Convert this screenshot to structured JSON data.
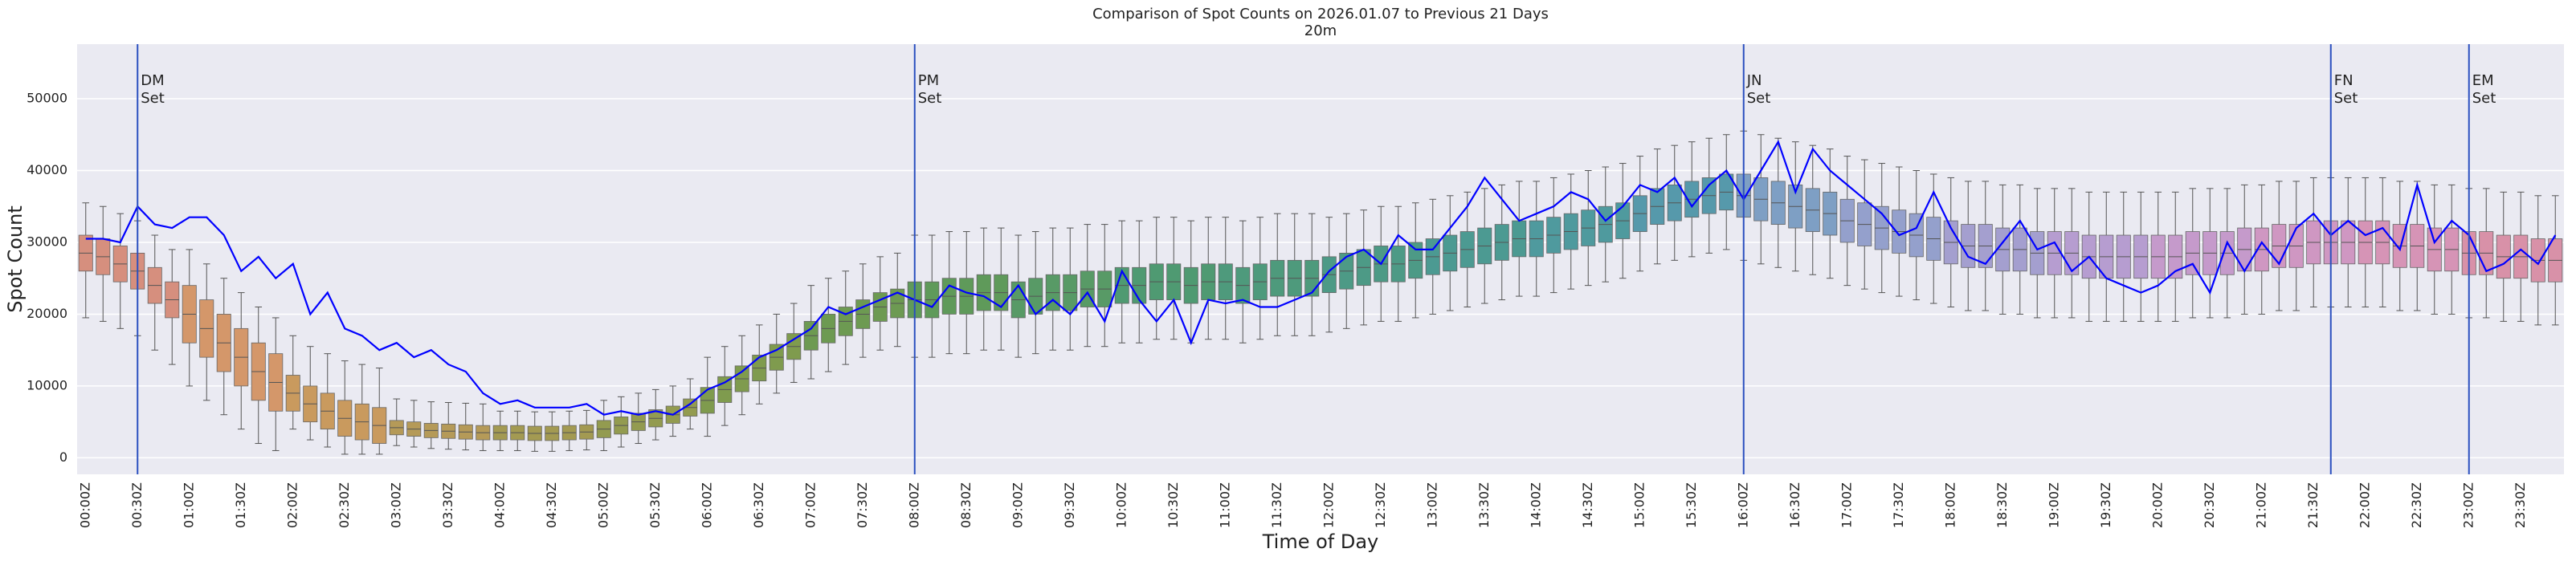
{
  "chart_data": {
    "type": "box",
    "title": "Comparison of Spot Counts on 2026.01.07 to Previous 21 Days",
    "subtitle": "20m",
    "xlabel": "Time of Day",
    "ylabel": "Spot Count",
    "ylim": [
      -2300,
      57600
    ],
    "yticks": [
      0,
      10000,
      20000,
      30000,
      40000,
      50000
    ],
    "grid": "y",
    "background": "#eaeaf2",
    "grid_color": "#ffffff",
    "categories": [
      "00:00Z",
      null,
      null,
      "00:30Z",
      null,
      null,
      "01:00Z",
      null,
      null,
      "01:30Z",
      null,
      null,
      "02:00Z",
      null,
      null,
      "02:30Z",
      null,
      null,
      "03:00Z",
      null,
      null,
      "03:30Z",
      null,
      null,
      "04:00Z",
      null,
      null,
      "04:30Z",
      null,
      null,
      "05:00Z",
      null,
      null,
      "05:30Z",
      null,
      null,
      "06:00Z",
      null,
      null,
      "06:30Z",
      null,
      null,
      "07:00Z",
      null,
      null,
      "07:30Z",
      null,
      null,
      "08:00Z",
      null,
      null,
      "08:30Z",
      null,
      null,
      "09:00Z",
      null,
      null,
      "09:30Z",
      null,
      null,
      "10:00Z",
      null,
      null,
      "10:30Z",
      null,
      null,
      "11:00Z",
      null,
      null,
      "11:30Z",
      null,
      null,
      "12:00Z",
      null,
      null,
      "12:30Z",
      null,
      null,
      "13:00Z",
      null,
      null,
      "13:30Z",
      null,
      null,
      "14:00Z",
      null,
      null,
      "14:30Z",
      null,
      null,
      "15:00Z",
      null,
      null,
      "15:30Z",
      null,
      null,
      "16:00Z",
      null,
      null,
      "16:30Z",
      null,
      null,
      "17:00Z",
      null,
      null,
      "17:30Z",
      null,
      null,
      "18:00Z",
      null,
      null,
      "18:30Z",
      null,
      null,
      "19:00Z",
      null,
      null,
      "19:30Z",
      null,
      null,
      "20:00Z",
      null,
      null,
      "20:30Z",
      null,
      null,
      "21:00Z",
      null,
      null,
      "21:30Z",
      null,
      null,
      "22:00Z",
      null,
      null,
      "22:30Z",
      null,
      null,
      "23:00Z",
      null,
      null,
      "23:30Z",
      null,
      null
    ],
    "hour_colors": [
      "#d68f7e",
      "#d4976a",
      "#c99a5e",
      "#b59a58",
      "#a39a52",
      "#939b50",
      "#7f9b4e",
      "#6d9a52",
      "#5f9a5a",
      "#589a66",
      "#4f9a72",
      "#4e9a7c",
      "#4d9a86",
      "#4c9a92",
      "#4f9a9e",
      "#5699ab",
      "#7e9fc4",
      "#94a0cc",
      "#a49fcf",
      "#b69dd0",
      "#c59acb",
      "#cf97c2",
      "#d694b6",
      "#d891a8"
    ],
    "boxes": [
      [
        19500,
        26000,
        28500,
        31000,
        35500
      ],
      [
        19000,
        25500,
        28000,
        30500,
        35000
      ],
      [
        18000,
        24500,
        27000,
        29500,
        34000
      ],
      [
        17000,
        23500,
        26000,
        28500,
        33000
      ],
      [
        15000,
        21500,
        24000,
        26500,
        31000
      ],
      [
        13000,
        19500,
        22000,
        24500,
        29000
      ],
      [
        10000,
        16000,
        20000,
        24000,
        29000
      ],
      [
        8000,
        14000,
        18000,
        22000,
        27000
      ],
      [
        6000,
        12000,
        16000,
        20000,
        25000
      ],
      [
        4000,
        10000,
        14000,
        18000,
        23000
      ],
      [
        2000,
        8000,
        12000,
        16000,
        21000
      ],
      [
        1000,
        6500,
        10500,
        14500,
        19500
      ],
      [
        4000,
        6500,
        9000,
        11500,
        17000
      ],
      [
        2500,
        5000,
        7500,
        10000,
        15500
      ],
      [
        1500,
        4000,
        6500,
        9000,
        14500
      ],
      [
        500,
        3000,
        5500,
        8000,
        13500
      ],
      [
        500,
        2500,
        5000,
        7500,
        13000
      ],
      [
        500,
        2000,
        4500,
        7000,
        12500
      ],
      [
        1700,
        3200,
        4200,
        5200,
        8200
      ],
      [
        1500,
        3000,
        4000,
        5000,
        8000
      ],
      [
        1300,
        2800,
        3800,
        4800,
        7800
      ],
      [
        1200,
        2700,
        3700,
        4700,
        7700
      ],
      [
        1100,
        2600,
        3600,
        4600,
        7600
      ],
      [
        1000,
        2500,
        3500,
        4500,
        7500
      ],
      [
        1000,
        2500,
        3500,
        4500,
        6500
      ],
      [
        1000,
        2500,
        3500,
        4500,
        6500
      ],
      [
        900,
        2400,
        3400,
        4400,
        6400
      ],
      [
        900,
        2400,
        3400,
        4400,
        6400
      ],
      [
        1000,
        2500,
        3500,
        4500,
        6500
      ],
      [
        1100,
        2600,
        3600,
        4600,
        6600
      ],
      [
        1000,
        2800,
        4000,
        5200,
        8000
      ],
      [
        1500,
        3300,
        4500,
        5700,
        8500
      ],
      [
        2000,
        3800,
        5000,
        6200,
        9000
      ],
      [
        2500,
        4300,
        5500,
        6700,
        9500
      ],
      [
        3000,
        4800,
        6000,
        7200,
        10000
      ],
      [
        4000,
        5800,
        7000,
        8200,
        11000
      ],
      [
        3000,
        6200,
        8000,
        9800,
        14000
      ],
      [
        4500,
        7700,
        9500,
        11300,
        15500
      ],
      [
        6000,
        9200,
        11000,
        12800,
        17000
      ],
      [
        7500,
        10700,
        12500,
        14300,
        18500
      ],
      [
        9000,
        12200,
        14000,
        15800,
        20000
      ],
      [
        10500,
        13700,
        15500,
        17300,
        21500
      ],
      [
        11000,
        15000,
        17000,
        19000,
        24000
      ],
      [
        12000,
        16000,
        18000,
        20000,
        25000
      ],
      [
        13000,
        17000,
        19000,
        21000,
        26000
      ],
      [
        14000,
        18000,
        20000,
        22000,
        27000
      ],
      [
        15000,
        19000,
        21000,
        23000,
        28000
      ],
      [
        15500,
        19500,
        21500,
        23500,
        28500
      ],
      [
        14000,
        19500,
        22000,
        24500,
        31000
      ],
      [
        14000,
        19500,
        22000,
        24500,
        31000
      ],
      [
        14500,
        20000,
        22500,
        25000,
        31500
      ],
      [
        14500,
        20000,
        22500,
        25000,
        31500
      ],
      [
        15000,
        20500,
        23000,
        25500,
        32000
      ],
      [
        15000,
        20500,
        23000,
        25500,
        32000
      ],
      [
        14000,
        19500,
        22000,
        24500,
        31000
      ],
      [
        14500,
        20000,
        22500,
        25000,
        31500
      ],
      [
        15000,
        20500,
        23000,
        25500,
        32000
      ],
      [
        15000,
        20500,
        23000,
        25500,
        32000
      ],
      [
        15500,
        21000,
        23500,
        26000,
        32500
      ],
      [
        15500,
        21000,
        23500,
        26000,
        32500
      ],
      [
        16000,
        21500,
        24000,
        26500,
        33000
      ],
      [
        16000,
        21500,
        24000,
        26500,
        33000
      ],
      [
        16500,
        22000,
        24500,
        27000,
        33500
      ],
      [
        16500,
        22000,
        24500,
        27000,
        33500
      ],
      [
        16000,
        21500,
        24000,
        26500,
        33000
      ],
      [
        16500,
        22000,
        24500,
        27000,
        33500
      ],
      [
        16500,
        22000,
        24500,
        27000,
        33500
      ],
      [
        16000,
        21500,
        24000,
        26500,
        33000
      ],
      [
        16500,
        22000,
        24500,
        27000,
        33500
      ],
      [
        17000,
        22500,
        25000,
        27500,
        34000
      ],
      [
        17000,
        22500,
        25000,
        27500,
        34000
      ],
      [
        17000,
        22500,
        25000,
        27500,
        34000
      ],
      [
        17500,
        23000,
        25500,
        28000,
        33500
      ],
      [
        18000,
        23500,
        26000,
        28500,
        34000
      ],
      [
        18500,
        24000,
        26500,
        29000,
        34500
      ],
      [
        19000,
        24500,
        27000,
        29500,
        35000
      ],
      [
        19000,
        24500,
        27000,
        29500,
        35000
      ],
      [
        19500,
        25000,
        27500,
        30000,
        35500
      ],
      [
        20000,
        25500,
        28000,
        30500,
        36000
      ],
      [
        20500,
        26000,
        28500,
        31000,
        36500
      ],
      [
        21000,
        26500,
        29000,
        31500,
        37000
      ],
      [
        21500,
        27000,
        29500,
        32000,
        37500
      ],
      [
        22000,
        27500,
        30000,
        32500,
        38000
      ],
      [
        22500,
        28000,
        30500,
        33000,
        38500
      ],
      [
        22500,
        28000,
        30500,
        33000,
        38500
      ],
      [
        23000,
        28500,
        31000,
        33500,
        39000
      ],
      [
        23500,
        29000,
        31500,
        34000,
        39500
      ],
      [
        24000,
        29500,
        32000,
        34500,
        40000
      ],
      [
        24500,
        30000,
        32500,
        35000,
        40500
      ],
      [
        25000,
        30500,
        33000,
        35500,
        41000
      ],
      [
        26000,
        31500,
        34000,
        36500,
        42000
      ],
      [
        27000,
        32500,
        35000,
        37500,
        43000
      ],
      [
        27500,
        33000,
        35500,
        38000,
        43500
      ],
      [
        28000,
        33500,
        36000,
        38500,
        44000
      ],
      [
        28500,
        34000,
        36500,
        39000,
        44500
      ],
      [
        29000,
        34500,
        37000,
        39500,
        45000
      ],
      [
        27500,
        33500,
        36500,
        39500,
        45500
      ],
      [
        27000,
        33000,
        36000,
        39000,
        45000
      ],
      [
        26500,
        32500,
        35500,
        38500,
        44500
      ],
      [
        26000,
        32000,
        35000,
        38000,
        44000
      ],
      [
        25500,
        31500,
        34500,
        37500,
        43500
      ],
      [
        25000,
        31000,
        34000,
        37000,
        43000
      ],
      [
        24000,
        30000,
        33000,
        36000,
        42000
      ],
      [
        23500,
        29500,
        32500,
        35500,
        41500
      ],
      [
        23000,
        29000,
        32000,
        35000,
        41000
      ],
      [
        22500,
        28500,
        31500,
        34500,
        40500
      ],
      [
        22000,
        28000,
        31000,
        34000,
        40000
      ],
      [
        21500,
        27500,
        30500,
        33500,
        39500
      ],
      [
        21000,
        27000,
        30000,
        33000,
        39000
      ],
      [
        20500,
        26500,
        29500,
        32500,
        38500
      ],
      [
        20500,
        26500,
        29500,
        32500,
        38500
      ],
      [
        20000,
        26000,
        29000,
        32000,
        38000
      ],
      [
        20000,
        26000,
        29000,
        32000,
        38000
      ],
      [
        19500,
        25500,
        28500,
        31500,
        37500
      ],
      [
        19500,
        25500,
        28500,
        31500,
        37500
      ],
      [
        19500,
        25500,
        28500,
        31500,
        37500
      ],
      [
        19000,
        25000,
        28000,
        31000,
        37000
      ],
      [
        19000,
        25000,
        28000,
        31000,
        37000
      ],
      [
        19000,
        25000,
        28000,
        31000,
        37000
      ],
      [
        19000,
        25000,
        28000,
        31000,
        37000
      ],
      [
        19000,
        25000,
        28000,
        31000,
        37000
      ],
      [
        19000,
        25000,
        28000,
        31000,
        37000
      ],
      [
        19500,
        25500,
        28500,
        31500,
        37500
      ],
      [
        19500,
        25500,
        28500,
        31500,
        37500
      ],
      [
        19500,
        25500,
        28500,
        31500,
        37500
      ],
      [
        20000,
        26000,
        29000,
        32000,
        38000
      ],
      [
        20000,
        26000,
        29000,
        32000,
        38000
      ],
      [
        20500,
        26500,
        29500,
        32500,
        38500
      ],
      [
        20500,
        26500,
        29500,
        32500,
        38500
      ],
      [
        21000,
        27000,
        30000,
        33000,
        39000
      ],
      [
        21000,
        27000,
        30000,
        33000,
        39000
      ],
      [
        21000,
        27000,
        30000,
        33000,
        39000
      ],
      [
        21000,
        27000,
        30000,
        33000,
        39000
      ],
      [
        21000,
        27000,
        30000,
        33000,
        39000
      ],
      [
        20500,
        26500,
        29500,
        32500,
        38500
      ],
      [
        20500,
        26500,
        29500,
        32500,
        38500
      ],
      [
        20000,
        26000,
        29000,
        32000,
        38000
      ],
      [
        20000,
        26000,
        29000,
        32000,
        38000
      ],
      [
        19500,
        25500,
        28500,
        31500,
        37500
      ],
      [
        19500,
        25500,
        28500,
        31500,
        37500
      ],
      [
        19000,
        25000,
        28000,
        31000,
        37000
      ],
      [
        19000,
        25000,
        28000,
        31000,
        37000
      ],
      [
        18500,
        24500,
        27500,
        30500,
        36500
      ],
      [
        18500,
        24500,
        27500,
        30500,
        36500
      ]
    ],
    "line": {
      "color": "#0000ff",
      "values": [
        30500,
        30500,
        30000,
        35000,
        32500,
        32000,
        33500,
        33500,
        31000,
        26000,
        28000,
        25000,
        27000,
        20000,
        23000,
        18000,
        17000,
        15000,
        16000,
        14000,
        15000,
        13000,
        12000,
        9000,
        7500,
        8000,
        7000,
        7000,
        7000,
        7500,
        6000,
        6500,
        6000,
        6500,
        6000,
        7500,
        9500,
        10500,
        12000,
        14000,
        15000,
        16500,
        18000,
        21000,
        20000,
        21000,
        22000,
        23000,
        22000,
        21000,
        24000,
        23000,
        22500,
        21000,
        24000,
        20000,
        22000,
        20000,
        23000,
        19000,
        26000,
        22000,
        19000,
        22000,
        16000,
        22000,
        21500,
        22000,
        21000,
        21000,
        22000,
        23000,
        26000,
        28000,
        29000,
        27000,
        31000,
        29000,
        29000,
        32000,
        35000,
        39000,
        36000,
        33000,
        34000,
        35000,
        37000,
        36000,
        33000,
        35000,
        38000,
        37000,
        39000,
        35000,
        38000,
        40000,
        36000,
        40000,
        44000,
        37000,
        43000,
        40000,
        38000,
        36000,
        34000,
        31000,
        32000,
        37000,
        32000,
        28000,
        27000,
        30000,
        33000,
        29000,
        30000,
        26000,
        28000,
        25000,
        24000,
        23000,
        24000,
        26000,
        27000,
        23000,
        30000,
        26000,
        30000,
        27000,
        32000,
        34000,
        31000,
        33000,
        31000,
        32000,
        29000,
        38000,
        30000,
        33000,
        31000,
        26000,
        27000,
        29000,
        27000,
        31000
      ]
    },
    "vline_color": "#2a4fbf",
    "vlines": [
      {
        "x": 3,
        "label": [
          "DM",
          "Set"
        ]
      },
      {
        "x": 48,
        "label": [
          "PM",
          "Set"
        ]
      },
      {
        "x": 96,
        "label": [
          "JN",
          "Set"
        ]
      },
      {
        "x": 130,
        "label": [
          "FN",
          "Set"
        ]
      },
      {
        "x": 138,
        "label": [
          "EM",
          "Set"
        ]
      }
    ]
  }
}
